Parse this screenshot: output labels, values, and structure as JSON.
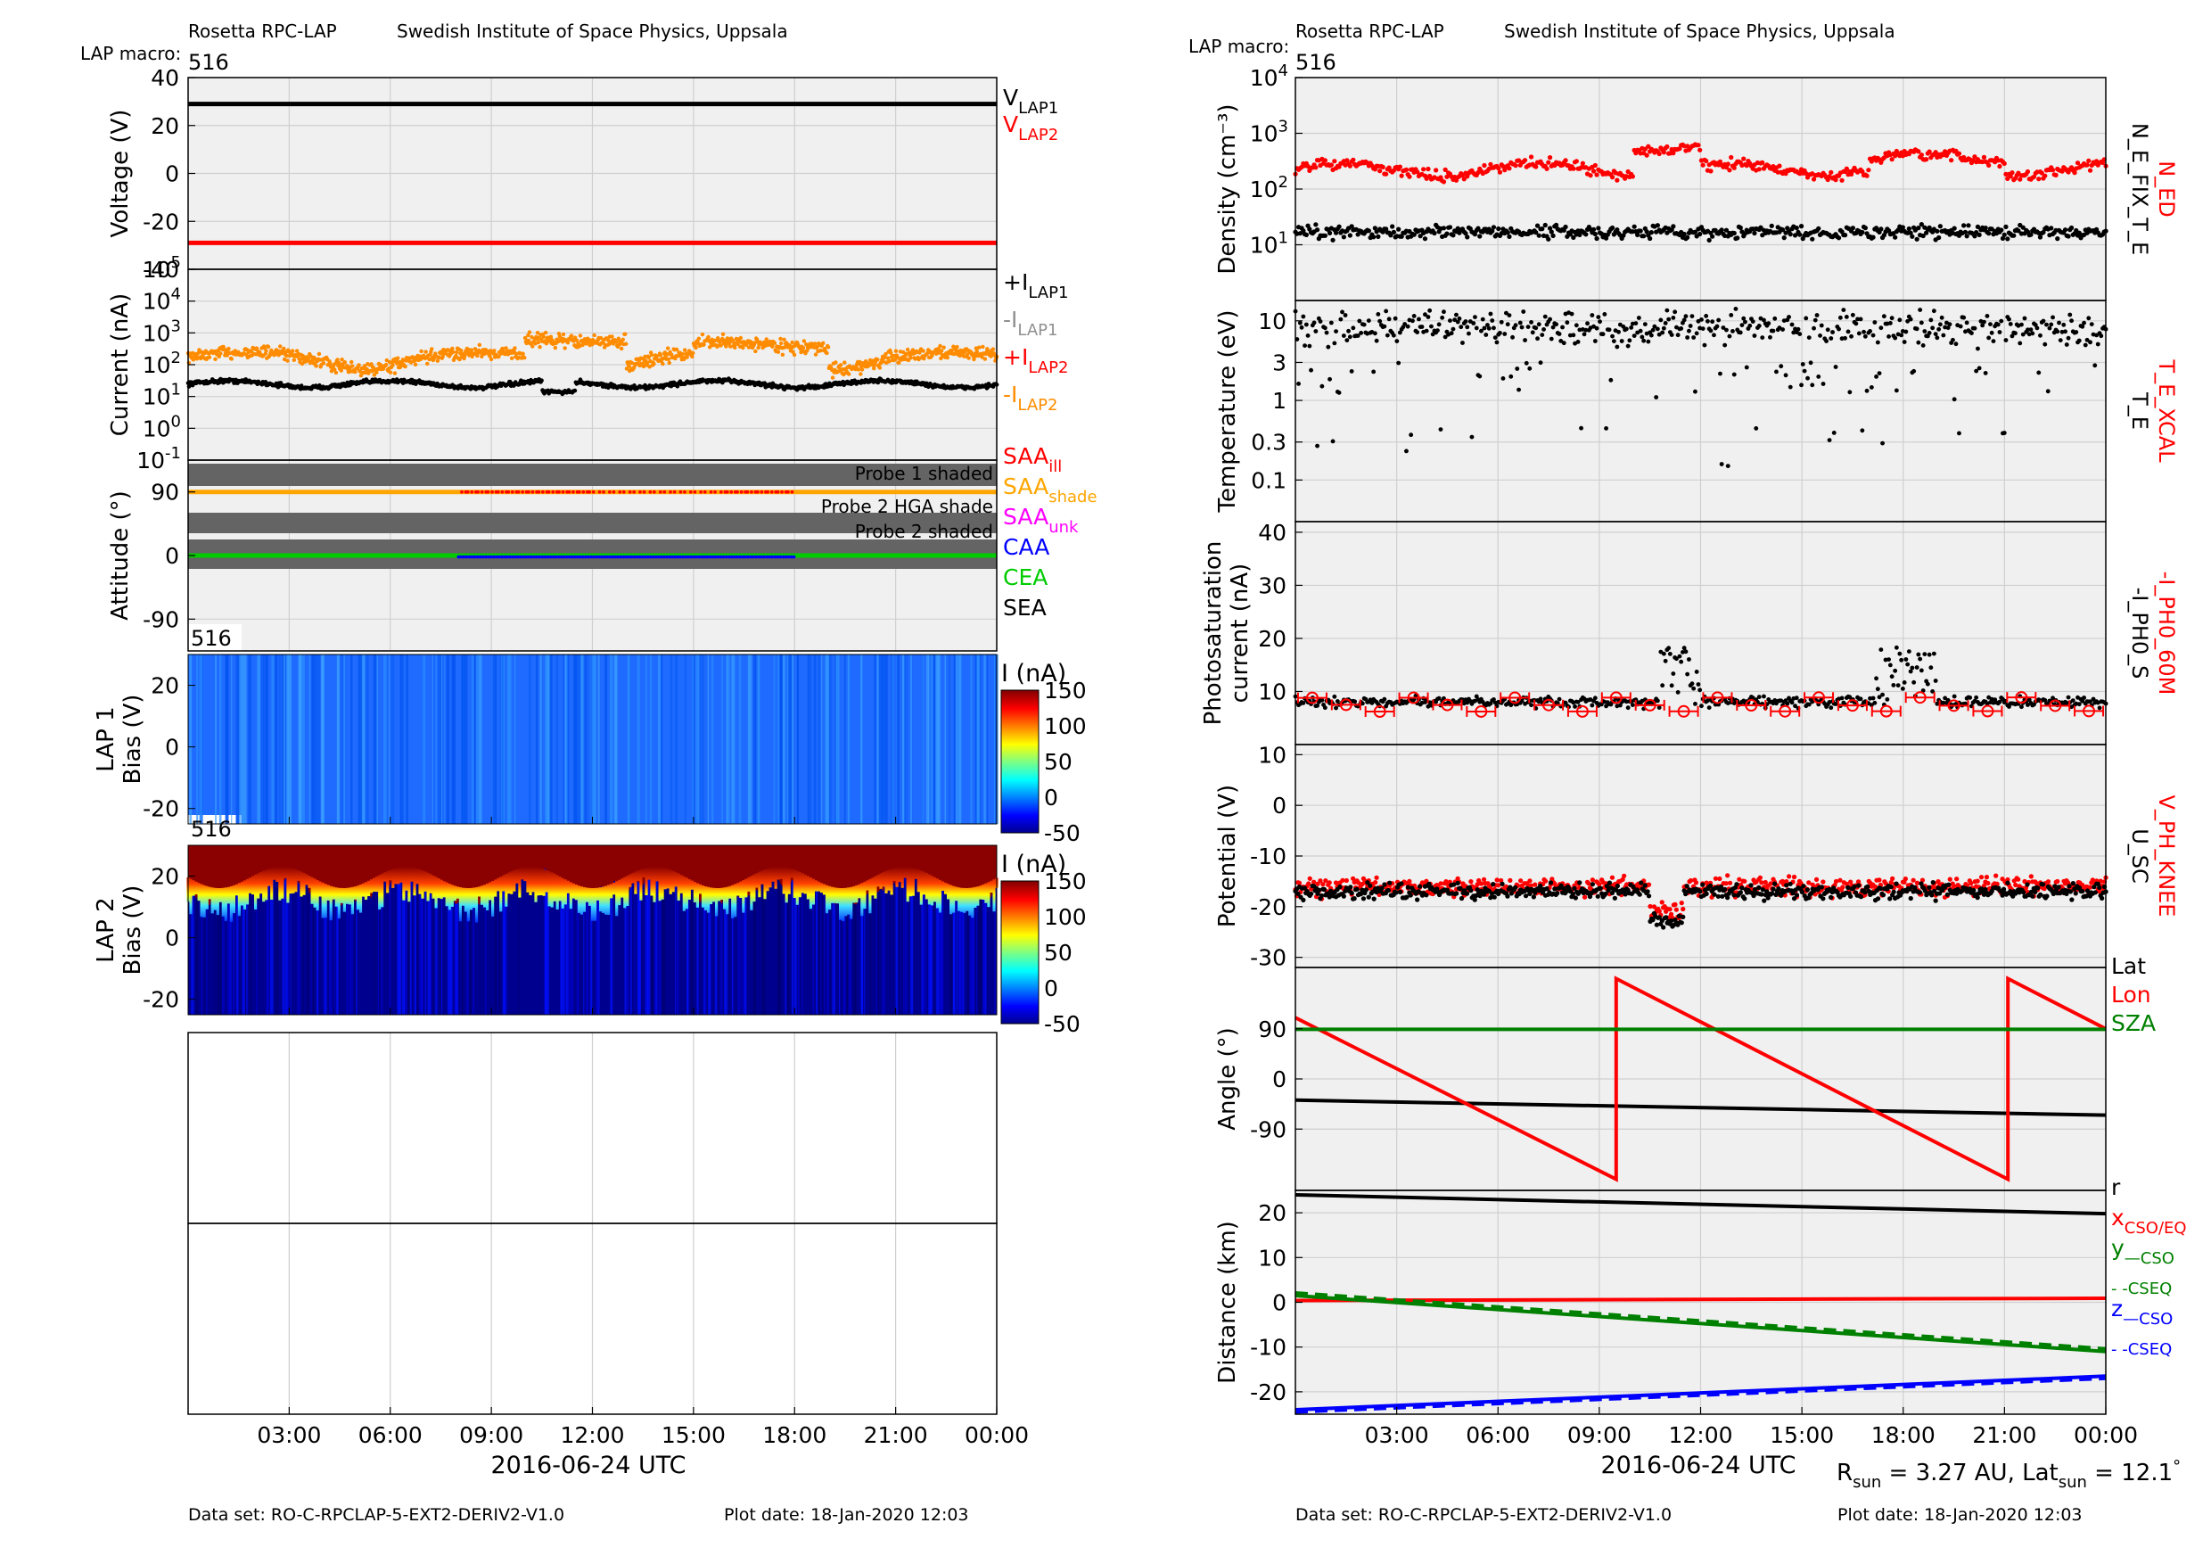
{
  "left": {
    "header_left": "Rosetta RPC-LAP",
    "header_right": "Swedish Institute of Space Physics, Uppsala",
    "macro_label": "LAP macro:",
    "macro_value": "516",
    "footer_dataset": "Data set: RO-C-RPCLAP-5-EXT2-DERIV2-V1.0",
    "footer_plotdate": "Plot date: 18-Jan-2020 12:03",
    "xlabel": "2016-06-24 UTC",
    "xticks": [
      "03:00",
      "06:00",
      "09:00",
      "12:00",
      "15:00",
      "18:00",
      "21:00",
      "00:00"
    ]
  },
  "right": {
    "header_left": "Rosetta RPC-LAP",
    "header_right": "Swedish Institute of Space Physics, Uppsala",
    "macro_label": "LAP macro:",
    "macro_value": "516",
    "footer_dataset": "Data set: RO-C-RPCLAP-5-EXT2-DERIV2-V1.0",
    "footer_plotdate": "Plot date: 18-Jan-2020 12:03",
    "xlabel": "2016-06-24 UTC",
    "xticks": [
      "03:00",
      "06:00",
      "09:00",
      "12:00",
      "15:00",
      "18:00",
      "21:00",
      "00:00"
    ],
    "rsun_text": "R",
    "rsun_sub": "sun",
    "rsun_value": " = 3.27 AU, Lat",
    "lat_sub": "sun",
    "lat_value": " = 12.1",
    "deg": "°"
  },
  "chart_data": [
    {
      "type": "line",
      "panel": "voltage",
      "ylabel": "Voltage (V)",
      "ylim": [
        -40,
        40
      ],
      "yticks": [
        "40",
        "20",
        "0",
        "-20",
        "-40"
      ],
      "series": [
        {
          "name": "V_LAP1",
          "color": "#000000",
          "values": [
            29,
            29
          ]
        },
        {
          "name": "V_LAP2",
          "color": "#ff0000",
          "values": [
            -29,
            -29
          ]
        }
      ],
      "legend": [
        {
          "text": "V",
          "sub": "LAP1",
          "color": "#000000"
        },
        {
          "text": "V",
          "sub": "LAP2",
          "color": "#ff0000"
        }
      ]
    },
    {
      "type": "scatter",
      "panel": "current",
      "yscale": "log",
      "ylabel": "Current (nA)",
      "ylim": [
        0.1,
        100000
      ],
      "yticks": [
        "10^5",
        "10^4",
        "10^3",
        "10^2",
        "10^1",
        "10^0",
        "10^-1"
      ],
      "series": [
        {
          "name": "+I_LAP1",
          "color": "#000000",
          "typical": 25
        },
        {
          "name": "-I_LAP2",
          "color": "#ff8c00",
          "typical": 200
        }
      ],
      "legend": [
        {
          "text": "+I",
          "sub": "LAP1",
          "color": "#000000"
        },
        {
          "text": "-I",
          "sub": "LAP1",
          "color": "#909090"
        },
        {
          "text": "+I",
          "sub": "LAP2",
          "color": "#ff0000"
        },
        {
          "text": "-I",
          "sub": "LAP2",
          "color": "#ff8c00"
        }
      ]
    },
    {
      "type": "line",
      "panel": "attitude",
      "ylabel": "Attitude (°)",
      "ylim": [
        -135,
        135
      ],
      "yticks": [
        "90",
        "0",
        "-90"
      ],
      "shade_labels": [
        "Probe 1 shaded",
        "Probe 2 HGA shade",
        "Probe 2 shaded"
      ],
      "series": [
        {
          "name": "SAA",
          "color": "#ffa500",
          "values": [
            90,
            90
          ]
        },
        {
          "name": "CEA",
          "color": "#00cc00",
          "values": [
            0,
            0
          ]
        },
        {
          "name": "CAA",
          "color": "#0000ff",
          "values": [
            0,
            0
          ]
        }
      ],
      "legend": [
        {
          "text": "SAA",
          "sub": "ill",
          "color": "#ff0000"
        },
        {
          "text": "SAA",
          "sub": "shade",
          "color": "#ffa500"
        },
        {
          "text": "SAA",
          "sub": "unk",
          "color": "#ff00ff"
        },
        {
          "text": "CAA",
          "sub": "",
          "color": "#0000ff"
        },
        {
          "text": "CEA",
          "sub": "",
          "color": "#00cc00"
        },
        {
          "text": "SEA",
          "sub": "",
          "color": "#000000"
        }
      ]
    },
    {
      "type": "heatmap",
      "panel": "lap1_bias",
      "ylabel": "LAP 1",
      "ylabel2": "Bias (V)",
      "ylim": [
        -25,
        30
      ],
      "yticks": [
        "20",
        "0",
        "-20"
      ],
      "macro": "516",
      "colorbar": {
        "label": "I (nA)",
        "ticks": [
          "150",
          "100",
          "50",
          "0",
          "-50"
        ],
        "range": [
          -50,
          150
        ]
      }
    },
    {
      "type": "heatmap",
      "panel": "lap2_bias",
      "ylabel": "LAP 2",
      "ylabel2": "Bias (V)",
      "ylim": [
        -25,
        30
      ],
      "yticks": [
        "20",
        "0",
        "-20"
      ],
      "macro": "516",
      "colorbar": {
        "label": "I (nA)",
        "ticks": [
          "150",
          "100",
          "50",
          "0",
          "-50"
        ],
        "range": [
          -50,
          150
        ]
      }
    },
    {
      "type": "scatter",
      "panel": "density",
      "yscale": "log",
      "ylabel": "Density (cm⁻³)",
      "ylim": [
        1,
        10000
      ],
      "yticks": [
        "10^4",
        "10^3",
        "10^2",
        "10^1"
      ],
      "series": [
        {
          "name": "N_ED",
          "color": "#ff0000",
          "typical": 250
        },
        {
          "name": "N_E_FIX_T_E",
          "color": "#000000",
          "typical": 17
        }
      ]
    },
    {
      "type": "scatter",
      "panel": "temperature",
      "yscale": "log",
      "ylabel": "Temperature (eV)",
      "ylim": [
        0.03,
        18
      ],
      "yticks": [
        "10",
        "3",
        "1",
        "0.3",
        "0.1"
      ],
      "series": [
        {
          "name": "T_E_XCAL",
          "color": "#ff0000"
        },
        {
          "name": "T_E",
          "color": "#000000",
          "typical": 8
        }
      ]
    },
    {
      "type": "scatter",
      "panel": "photosaturation",
      "ylabel": "Photosaturation",
      "ylabel2": "current (nA)",
      "ylim": [
        0,
        42
      ],
      "yticks": [
        "40",
        "30",
        "20",
        "10"
      ],
      "series": [
        {
          "name": "-I_PH0_60M",
          "color": "#ff0000",
          "typical": 8
        },
        {
          "name": "-I_PH0_S",
          "color": "#000000",
          "typical": 8
        }
      ]
    },
    {
      "type": "scatter",
      "panel": "potential",
      "ylabel": "Potential (V)",
      "ylim": [
        -32,
        12
      ],
      "yticks": [
        "10",
        "0",
        "-10",
        "-20",
        "-30"
      ],
      "series": [
        {
          "name": "V_PH_KNEE",
          "color": "#ff0000",
          "typical": -16
        },
        {
          "name": "U_SC",
          "color": "#000000",
          "typical": -17
        }
      ]
    },
    {
      "type": "line",
      "panel": "angle",
      "ylabel": "Angle (°)",
      "ylim": [
        -200,
        200
      ],
      "yticks": [
        "90",
        "0",
        "-90"
      ],
      "series": [
        {
          "name": "Lat",
          "color": "#000000",
          "x": [
            0,
            24
          ],
          "values": [
            -38,
            -65
          ]
        },
        {
          "name": "Lon",
          "color": "#ff0000",
          "x": [
            0,
            9.5,
            9.5,
            21.1,
            21.1,
            24
          ],
          "values": [
            110,
            -180,
            180,
            -180,
            180,
            90
          ]
        },
        {
          "name": "SZA",
          "color": "#008000",
          "x": [
            0,
            24
          ],
          "values": [
            89,
            89
          ]
        }
      ],
      "legend": [
        {
          "text": "Lat",
          "sub": "",
          "color": "#000000"
        },
        {
          "text": "Lon",
          "sub": "",
          "color": "#ff0000"
        },
        {
          "text": "SZA",
          "sub": "",
          "color": "#008000"
        }
      ]
    },
    {
      "type": "line",
      "panel": "distance",
      "ylabel": "Distance (km)",
      "ylim": [
        -25,
        25
      ],
      "yticks": [
        "20",
        "10",
        "0",
        "-10",
        "-20"
      ],
      "series": [
        {
          "name": "r",
          "color": "#000000",
          "x": [
            0,
            24
          ],
          "values": [
            24,
            19.8
          ]
        },
        {
          "name": "x",
          "color": "#ff0000",
          "x": [
            0,
            24
          ],
          "values": [
            0.4,
            0.9
          ]
        },
        {
          "name": "y",
          "color": "#008000",
          "x": [
            0,
            24
          ],
          "values": [
            1.5,
            -11
          ]
        },
        {
          "name": "z",
          "color": "#0000ff",
          "x": [
            0,
            24
          ],
          "values": [
            -24,
            -16.5
          ]
        }
      ],
      "legend": [
        {
          "text": "r",
          "sub": "",
          "color": "#000000"
        },
        {
          "text": "x",
          "sub": "CSO/EQ",
          "color": "#ff0000"
        },
        {
          "text": "y",
          "sub": "—CSO",
          "color": "#008000"
        },
        {
          "text": "",
          "sub": "- -CSEQ",
          "color": "#008000"
        },
        {
          "text": "z",
          "sub": "—CSO",
          "color": "#0000ff"
        },
        {
          "text": "",
          "sub": "- -CSEQ",
          "color": "#0000ff"
        }
      ]
    }
  ]
}
